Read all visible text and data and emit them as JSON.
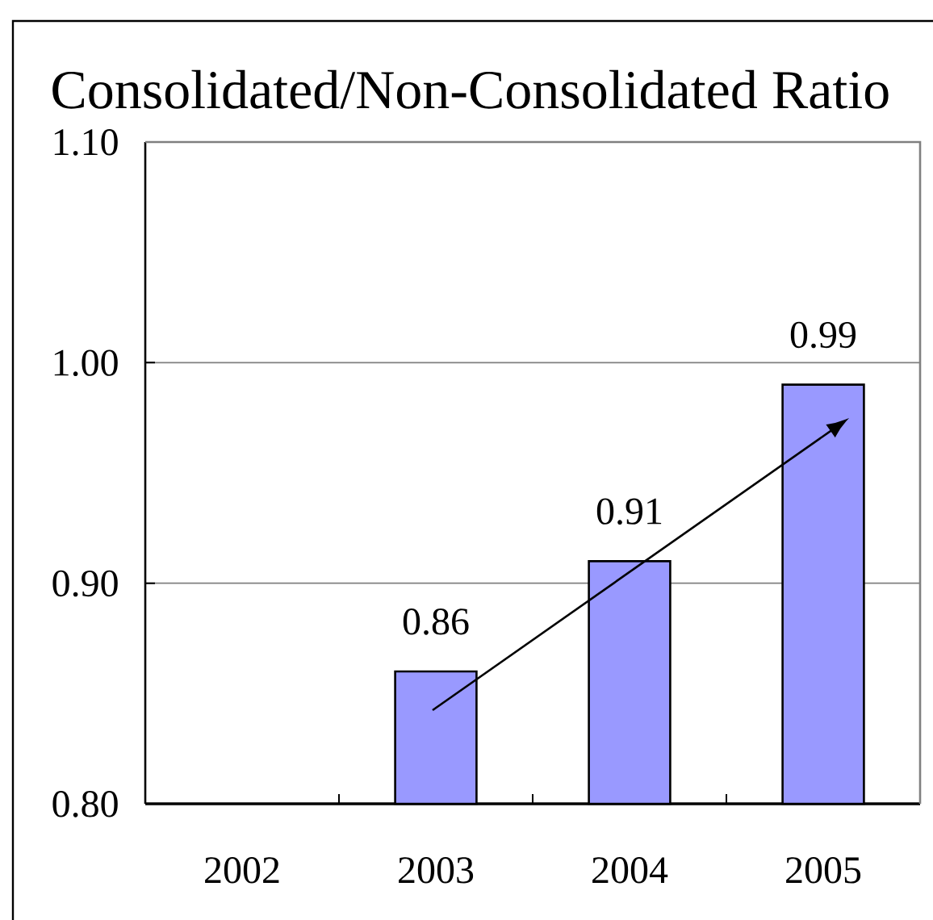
{
  "chart_data": {
    "type": "bar",
    "title": "Consolidated/Non-Consolidated Ratio",
    "categories": [
      "2002",
      "2003",
      "2004",
      "2005"
    ],
    "values": [
      null,
      0.86,
      0.91,
      0.99
    ],
    "color": "#9999ff",
    "ylim": [
      0.8,
      1.1
    ],
    "yticks": [
      {
        "value": 0.8,
        "label": "0.80"
      },
      {
        "value": 0.9,
        "label": "0.90"
      },
      {
        "value": 1.0,
        "label": "1.00"
      },
      {
        "value": 1.1,
        "label": "1.10"
      }
    ],
    "grid": "y",
    "data_labels": true
  }
}
